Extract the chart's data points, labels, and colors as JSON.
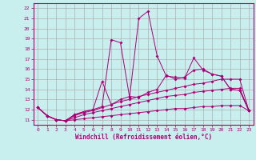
{
  "xlabel": "Windchill (Refroidissement éolien,°C)",
  "bg_color": "#c8eeed",
  "line_color": "#aa0077",
  "grid_color": "#b0b0b0",
  "x_values": [
    0,
    1,
    2,
    3,
    4,
    5,
    6,
    7,
    8,
    9,
    10,
    11,
    12,
    13,
    14,
    15,
    16,
    17,
    18,
    19,
    20,
    21,
    22,
    23
  ],
  "series": [
    [
      12.2,
      11.4,
      11.0,
      10.9,
      11.0,
      11.1,
      11.2,
      11.3,
      11.4,
      11.5,
      11.6,
      11.7,
      11.8,
      11.9,
      12.0,
      12.1,
      12.1,
      12.2,
      12.3,
      12.3,
      12.4,
      12.4,
      12.4,
      11.9
    ],
    [
      12.2,
      11.4,
      11.0,
      10.9,
      11.2,
      11.5,
      11.7,
      11.9,
      12.1,
      12.3,
      12.5,
      12.7,
      12.9,
      13.1,
      13.3,
      13.4,
      13.5,
      13.7,
      13.8,
      13.9,
      14.0,
      14.1,
      14.1,
      11.9
    ],
    [
      12.2,
      11.4,
      11.0,
      10.9,
      11.4,
      11.7,
      11.9,
      12.2,
      12.5,
      12.8,
      13.0,
      13.3,
      13.5,
      13.7,
      13.9,
      14.1,
      14.3,
      14.5,
      14.6,
      14.8,
      15.0,
      15.0,
      15.0,
      11.9
    ],
    [
      12.2,
      11.4,
      11.0,
      10.9,
      11.5,
      11.8,
      12.0,
      14.8,
      12.5,
      13.0,
      13.3,
      13.2,
      13.7,
      14.0,
      15.4,
      15.0,
      15.2,
      15.9,
      16.0,
      15.5,
      15.3,
      14.0,
      13.9,
      11.9
    ],
    [
      12.2,
      11.4,
      11.0,
      10.9,
      11.5,
      11.8,
      12.0,
      12.3,
      18.9,
      18.6,
      13.2,
      21.0,
      21.7,
      17.3,
      15.3,
      15.2,
      15.1,
      17.1,
      15.9,
      15.5,
      15.3,
      14.0,
      13.9,
      11.9
    ]
  ],
  "ylim": [
    10.5,
    22.5
  ],
  "yticks": [
    11,
    12,
    13,
    14,
    15,
    16,
    17,
    18,
    19,
    20,
    21,
    22
  ],
  "xlim": [
    -0.5,
    23.5
  ],
  "xticks": [
    0,
    1,
    2,
    3,
    4,
    5,
    6,
    7,
    8,
    9,
    10,
    11,
    12,
    13,
    14,
    15,
    16,
    17,
    18,
    19,
    20,
    21,
    22,
    23
  ]
}
